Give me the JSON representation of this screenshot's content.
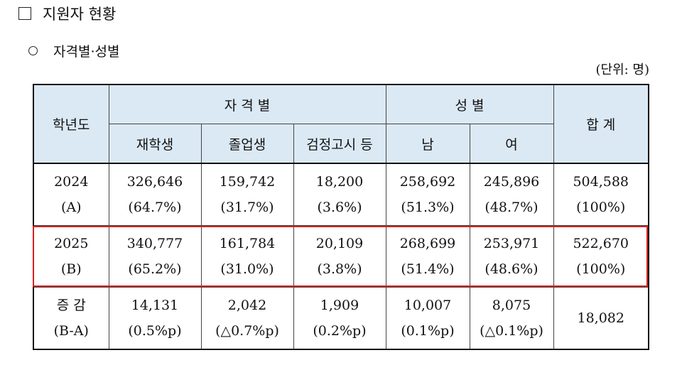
{
  "heading": {
    "title": "지원자 현황"
  },
  "subheading": {
    "title": "자격별·성별"
  },
  "unit_label": "(단위: 명)",
  "table": {
    "header": {
      "year": "학년도",
      "qualification_group": "자 격 별",
      "gender_group": "성 별",
      "total": "합 계",
      "enrolled": "재학생",
      "graduate": "졸업생",
      "ged": "검정고시 등",
      "male": "남",
      "female": "여"
    },
    "rows": [
      {
        "year": "2024",
        "year_sub": "(A)",
        "enrolled": "326,646",
        "enrolled_pct": "(64.7%)",
        "graduate": "159,742",
        "graduate_pct": "(31.7%)",
        "ged": "18,200",
        "ged_pct": "(3.6%)",
        "male": "258,692",
        "male_pct": "(51.3%)",
        "female": "245,896",
        "female_pct": "(48.7%)",
        "total": "504,588",
        "total_pct": "(100%)"
      },
      {
        "year": "2025",
        "year_sub": "(B)",
        "enrolled": "340,777",
        "enrolled_pct": "(65.2%)",
        "graduate": "161,784",
        "graduate_pct": "(31.0%)",
        "ged": "20,109",
        "ged_pct": "(3.8%)",
        "male": "268,699",
        "male_pct": "(51.4%)",
        "female": "253,971",
        "female_pct": "(48.6%)",
        "total": "522,670",
        "total_pct": "(100%)"
      },
      {
        "year": "증 감",
        "year_sub": "(B-A)",
        "enrolled": "14,131",
        "enrolled_pct": "(0.5%p)",
        "graduate": "2,042",
        "graduate_pct": "(△0.7%p)",
        "ged": "1,909",
        "ged_pct": "(0.2%p)",
        "male": "10,007",
        "male_pct": "(0.1%p)",
        "female": "8,075",
        "female_pct": "(△0.1%p)",
        "total": "18,082",
        "total_pct": ""
      }
    ]
  },
  "colors": {
    "header_bg": "#dbe9f5",
    "highlight": "#d71f1f"
  }
}
